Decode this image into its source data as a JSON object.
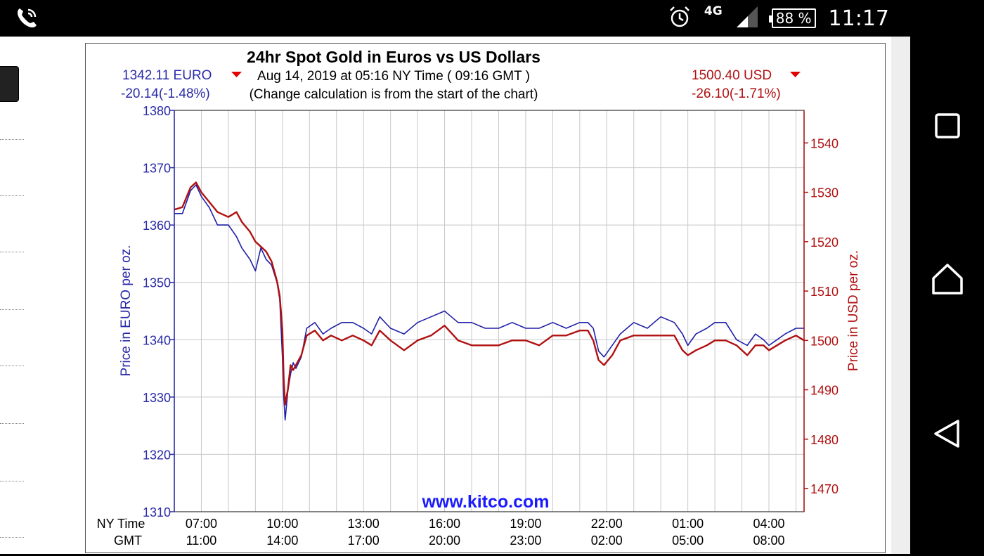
{
  "status_bar": {
    "network": "4G",
    "battery": "88 %",
    "time": "11:17"
  },
  "chart_data": {
    "type": "line",
    "title": "24hr Spot Gold in Euros vs US Dollars",
    "subtitle": "Aug 14, 2019 at 05:16 NY Time ( 09:16 GMT )",
    "note": "(Change calculation is from the start of the chart)",
    "left_quote": {
      "price": "1342.11 EURO",
      "change": "-20.14(-1.48%)",
      "direction": "down"
    },
    "right_quote": {
      "price": "1500.40 USD",
      "change": "-26.10(-1.71%)",
      "direction": "down"
    },
    "ylabel_left": "Price in EURO per oz.",
    "ylabel_right": "Price in USD per oz.",
    "ylim_left": [
      1310,
      1380
    ],
    "ylim_right": [
      1465.3,
      1546.6
    ],
    "yticks_left": [
      1310,
      1320,
      1330,
      1340,
      1350,
      1360,
      1370,
      1380
    ],
    "yticks_right": [
      1470,
      1480,
      1490,
      1500,
      1510,
      1520,
      1530,
      1540
    ],
    "xlim": [
      6.0,
      29.3
    ],
    "xtick_positions": [
      7,
      10,
      13,
      16,
      19,
      22,
      25,
      28
    ],
    "xtick_ny": [
      "07:00",
      "10:00",
      "13:00",
      "16:00",
      "19:00",
      "22:00",
      "01:00",
      "04:00"
    ],
    "xtick_gmt": [
      "11:00",
      "14:00",
      "17:00",
      "20:00",
      "23:00",
      "02:00",
      "05:00",
      "08:00"
    ],
    "x_row_label_ny": "NY Time",
    "x_row_label_gmt": "GMT",
    "grid": true,
    "watermark": "www.kitco.com",
    "colors": {
      "euro": "#1f1fa8",
      "usd": "#b01010",
      "axis_left": "#2a2aa8",
      "axis_right": "#b01010"
    },
    "series": [
      {
        "name": "EURO",
        "axis": "left",
        "x": [
          6.0,
          6.3,
          6.6,
          6.8,
          7.0,
          7.3,
          7.6,
          8.0,
          8.3,
          8.5,
          8.8,
          9.0,
          9.2,
          9.4,
          9.6,
          9.8,
          9.9,
          10.0,
          10.05,
          10.1,
          10.2,
          10.3,
          10.4,
          10.5,
          10.7,
          10.9,
          11.2,
          11.5,
          11.8,
          12.2,
          12.6,
          13.0,
          13.3,
          13.6,
          14.0,
          14.5,
          15.0,
          15.5,
          16.0,
          16.5,
          17.0,
          17.5,
          18.0,
          18.5,
          19.0,
          19.5,
          20.0,
          20.5,
          21.0,
          21.3,
          21.5,
          21.7,
          21.9,
          22.2,
          22.5,
          23.0,
          23.5,
          24.0,
          24.5,
          24.8,
          25.0,
          25.3,
          25.7,
          26.0,
          26.4,
          26.8,
          27.2,
          27.5,
          27.8,
          28.0,
          28.3,
          28.6,
          29.0,
          29.3
        ],
        "y": [
          1362,
          1362,
          1366,
          1367,
          1365,
          1363,
          1360,
          1360,
          1358,
          1356,
          1354,
          1352,
          1356,
          1354,
          1353,
          1350,
          1347,
          1337,
          1330,
          1326,
          1331,
          1334,
          1336,
          1335,
          1337,
          1342,
          1343,
          1341,
          1342,
          1343,
          1343,
          1342,
          1341,
          1344,
          1342,
          1341,
          1343,
          1344,
          1345,
          1343,
          1343,
          1342,
          1342,
          1343,
          1342,
          1342,
          1343,
          1342,
          1343,
          1343,
          1342,
          1338,
          1337,
          1339,
          1341,
          1343,
          1342,
          1344,
          1343,
          1341,
          1339,
          1341,
          1342,
          1343,
          1343,
          1340,
          1339,
          1341,
          1340,
          1339,
          1340,
          1341,
          1342,
          1342
        ]
      },
      {
        "name": "USD",
        "axis": "right",
        "x": [
          6.0,
          6.3,
          6.6,
          6.8,
          7.0,
          7.3,
          7.6,
          8.0,
          8.3,
          8.5,
          8.8,
          9.0,
          9.2,
          9.4,
          9.6,
          9.8,
          9.9,
          10.0,
          10.05,
          10.1,
          10.2,
          10.3,
          10.4,
          10.5,
          10.7,
          10.9,
          11.2,
          11.5,
          11.8,
          12.2,
          12.6,
          13.0,
          13.3,
          13.6,
          14.0,
          14.5,
          15.0,
          15.5,
          16.0,
          16.5,
          17.0,
          17.5,
          18.0,
          18.5,
          19.0,
          19.5,
          20.0,
          20.5,
          21.0,
          21.3,
          21.5,
          21.7,
          21.9,
          22.2,
          22.5,
          23.0,
          23.5,
          24.0,
          24.5,
          24.8,
          25.0,
          25.3,
          25.7,
          26.0,
          26.4,
          26.8,
          27.2,
          27.5,
          27.8,
          28.0,
          28.3,
          28.6,
          29.0,
          29.3
        ],
        "y": [
          1526.5,
          1527,
          1531,
          1532,
          1530,
          1528,
          1526,
          1525,
          1526,
          1524,
          1522,
          1520,
          1519,
          1518,
          1516,
          1512,
          1509,
          1502,
          1492,
          1487,
          1490,
          1495,
          1494,
          1495,
          1497,
          1501,
          1502,
          1500,
          1501,
          1500,
          1501,
          1500,
          1499,
          1502,
          1500,
          1498,
          1500,
          1501,
          1503,
          1500,
          1499,
          1499,
          1499,
          1500,
          1500,
          1499,
          1501,
          1501,
          1502,
          1502,
          1500,
          1496,
          1495,
          1497,
          1500,
          1501,
          1501,
          1501,
          1501,
          1498,
          1497,
          1498,
          1499,
          1500,
          1500,
          1499,
          1497,
          1499,
          1499,
          1498,
          1499,
          1500,
          1501,
          1500
        ]
      }
    ]
  }
}
